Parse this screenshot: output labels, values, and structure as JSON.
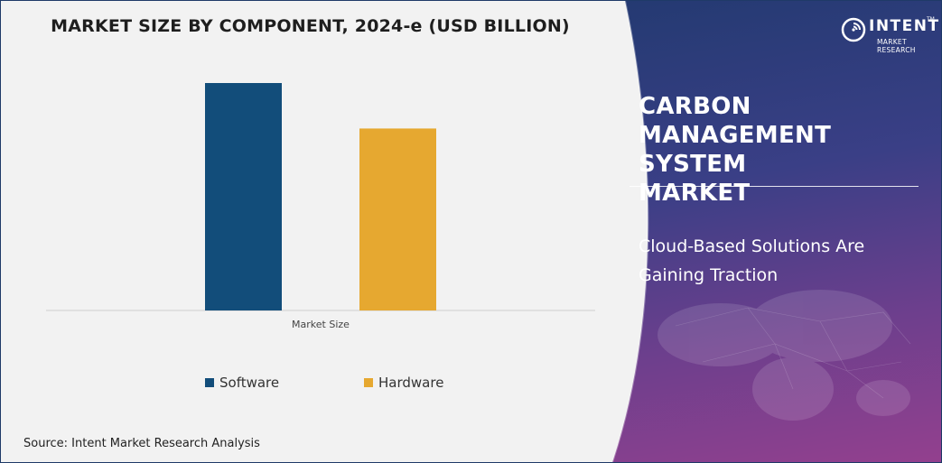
{
  "chart_data": {
    "type": "bar",
    "title": "MARKET SIZE BY COMPONENT, 2024-e (USD BILLION)",
    "categories": [
      "Market Size"
    ],
    "series": [
      {
        "name": "Software",
        "values": [
          0.9
        ],
        "color": "#124d7a"
      },
      {
        "name": "Hardware",
        "values": [
          0.72
        ],
        "color": "#e6a830"
      }
    ],
    "ylim": [
      0,
      1.0
    ],
    "grid": false,
    "legend": "bottom",
    "value_note": "no axis values printed; bar heights estimated relative to each other"
  },
  "source": "Source: Intent Market Research Analysis",
  "side": {
    "logo_word": "INTENT",
    "logo_tm": "TM",
    "logo_sub": "MARKET RESEARCH",
    "market_title": "CARBON\nMANAGEMENT SYSTEM\nMARKET",
    "headline": "Cloud-Based Solutions Are\nGaining Traction"
  }
}
